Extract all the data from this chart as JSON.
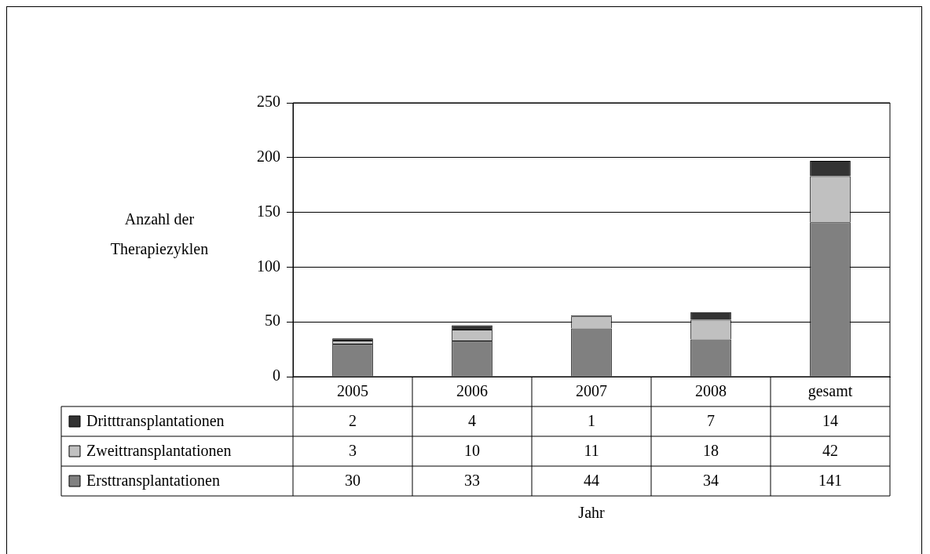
{
  "chart_data": {
    "type": "bar",
    "stacked": true,
    "annotations": [
      "Jahr"
    ],
    "ylabel": "Anzahl der Therapiezyklen",
    "categories": [
      "2005",
      "2006",
      "2007",
      "2008",
      "gesamt"
    ],
    "series": [
      {
        "name": "Ersttransplantationen",
        "color": "#808080",
        "values": [
          30,
          33,
          44,
          34,
          141
        ]
      },
      {
        "name": "Zweittransplantationen",
        "color": "#c0c0c0",
        "values": [
          3,
          10,
          11,
          18,
          42
        ]
      },
      {
        "name": "Dritttransplantationen",
        "color": "#333333",
        "values": [
          2,
          4,
          1,
          7,
          14
        ]
      }
    ],
    "ylim": [
      0,
      250
    ],
    "yticks": [
      0,
      50,
      100,
      150,
      200,
      250
    ],
    "grid": "y",
    "legend": "bottom",
    "data_labels": true
  }
}
